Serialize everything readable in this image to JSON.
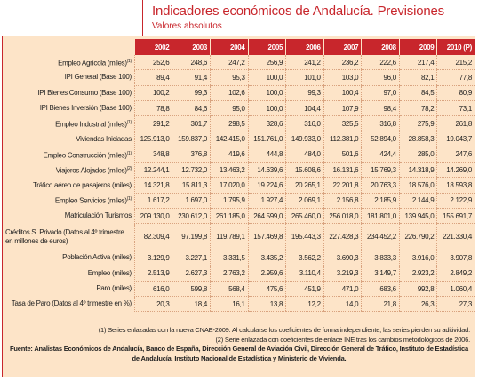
{
  "header": {
    "title": "Indicadores económicos de Andalucía. Previsiones",
    "subtitle": "Valores absolutos"
  },
  "table": {
    "columns": [
      "2002",
      "2003",
      "2004",
      "2005",
      "2006",
      "2007",
      "2008",
      "2009",
      "2010 (P)"
    ],
    "rows": [
      {
        "label": "Empleo Agrícola (miles)",
        "note": "(1)",
        "values": [
          "252,6",
          "248,6",
          "247,2",
          "256,9",
          "241,2",
          "236,2",
          "222,6",
          "217,4",
          "215,2"
        ]
      },
      {
        "label": "IPI General (Base 100)",
        "values": [
          "89,4",
          "91,4",
          "95,3",
          "100,0",
          "101,0",
          "103,0",
          "96,0",
          "82,1",
          "77,8"
        ]
      },
      {
        "label": "IPI Bienes Consumo (Base 100)",
        "values": [
          "100,2",
          "99,3",
          "102,6",
          "100,0",
          "99,3",
          "100,4",
          "97,0",
          "84,5",
          "80,9"
        ]
      },
      {
        "label": "IPI Bienes Inversión (Base 100)",
        "values": [
          "78,8",
          "84,6",
          "95,0",
          "100,0",
          "104,4",
          "107,9",
          "98,4",
          "78,2",
          "73,1"
        ]
      },
      {
        "label": "Empleo Industrial (miles)",
        "note": "(1)",
        "values": [
          "291,2",
          "301,7",
          "298,5",
          "328,6",
          "316,0",
          "325,5",
          "316,8",
          "275,9",
          "261,8"
        ]
      },
      {
        "label": "Viviendas Iniciadas",
        "values": [
          "125.913,0",
          "159.837,0",
          "142.415,0",
          "151.761,0",
          "149.933,0",
          "112.381,0",
          "52.894,0",
          "28.858,3",
          "19.043,7"
        ]
      },
      {
        "label": "Empleo Construcción (miles)",
        "note": "(1)",
        "values": [
          "348,8",
          "376,8",
          "419,6",
          "444,8",
          "484,0",
          "501,6",
          "424,4",
          "285,0",
          "247,6"
        ]
      },
      {
        "label": "Viajeros Alojados (miles)",
        "note": "(2)",
        "values": [
          "12.244,1",
          "12.732,0",
          "13.463,2",
          "14.639,6",
          "15.608,6",
          "16.131,6",
          "15.769,3",
          "14.318,9",
          "14.269,0"
        ]
      },
      {
        "label": "Tráfico aéreo de pasajeros (miles)",
        "values": [
          "14.321,8",
          "15.811,3",
          "17.020,0",
          "19.224,6",
          "20.265,1",
          "22.201,8",
          "20.763,3",
          "18.576,0",
          "18.593,8"
        ]
      },
      {
        "label": "Empleo Servicios (miles)",
        "note": "(1)",
        "values": [
          "1.617,2",
          "1.697,0",
          "1.795,9",
          "1.927,4",
          "2.069,1",
          "2.156,8",
          "2.185,9",
          "2.144,9",
          "2.122,9"
        ]
      },
      {
        "label": "Matriculación Turismos",
        "values": [
          "209.130,0",
          "230.612,0",
          "261.185,0",
          "264.599,0",
          "265.460,0",
          "256.018,0",
          "181.801,0",
          "139.945,0",
          "155.691,7"
        ]
      },
      {
        "label": "Créditos S. Privado (Datos al 4º trimestre en millones de euros)",
        "values": [
          "82.309,4",
          "97.199,8",
          "119.789,1",
          "157.469,8",
          "195.443,3",
          "227.428,3",
          "234.452,2",
          "226.790,2",
          "221.330,4"
        ]
      },
      {
        "label": "Población Activa (miles)",
        "values": [
          "3.129,9",
          "3.227,1",
          "3.331,5",
          "3.435,2",
          "3.562,2",
          "3.690,3",
          "3.833,3",
          "3.916,0",
          "3.907,8"
        ]
      },
      {
        "label": "Empleo (miles)",
        "values": [
          "2.513,9",
          "2.627,3",
          "2.763,2",
          "2.959,6",
          "3.110,4",
          "3.219,3",
          "3.149,7",
          "2.923,2",
          "2.849,2"
        ]
      },
      {
        "label": "Paro (miles)",
        "values": [
          "616,0",
          "599,8",
          "568,4",
          "475,6",
          "451,9",
          "471,0",
          "683,6",
          "992,8",
          "1.060,4"
        ]
      },
      {
        "label": "Tasa de Paro (Datos al 4º trimestre en %)",
        "values": [
          "20,3",
          "18,4",
          "16,1",
          "13,8",
          "12,2",
          "14,0",
          "21,8",
          "26,3",
          "27,3"
        ]
      }
    ]
  },
  "footnotes": [
    "(1) Series enlazadas con la nueva CNAE-2009. Al calcularse los coeficientes de forma independiente, las series pierden su aditividad.",
    "(2) Serie enlazada con coeficientes de enlace INE tras los cambios metodológicos de 2006."
  ],
  "source": "Fuente: Analistas Económicos de Andalucía, Banco de España, Dirección General de Aviación Civil, Dirección General de Tráfico, Instituto de Estadística de Andalucía, Instituto Nacional de Estadística y Ministerio de Vivienda."
}
